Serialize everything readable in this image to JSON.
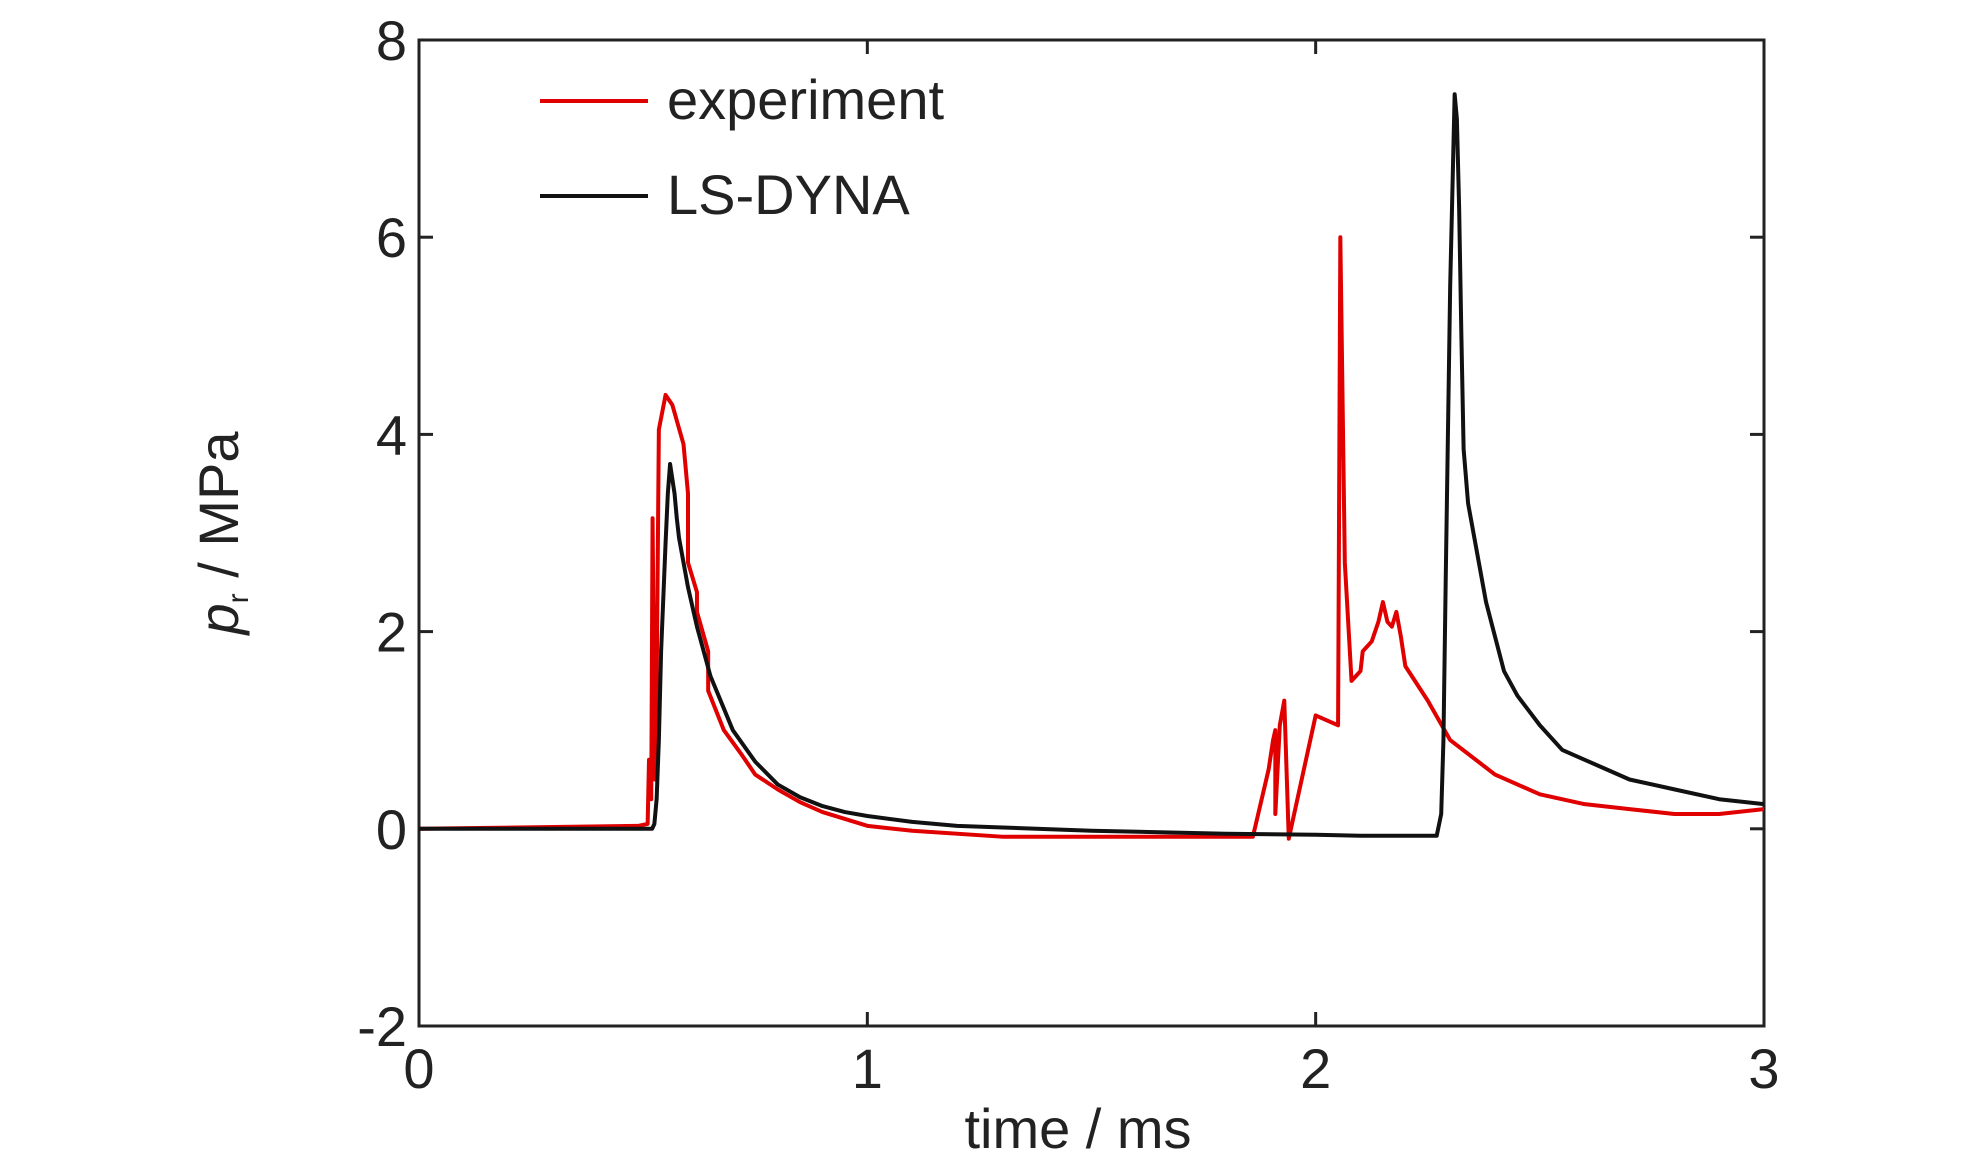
{
  "chart_data": {
    "type": "line",
    "title": "",
    "xlabel": "time / ms",
    "ylabel_main": "p",
    "ylabel_subscript": "r",
    "ylabel_unit": " / MPa",
    "xlim": [
      0,
      3
    ],
    "ylim": [
      -2,
      8
    ],
    "xticks": [
      0,
      1,
      2,
      3
    ],
    "xtick_labels": [
      "0",
      "1",
      "2",
      "3"
    ],
    "yticks": [
      -2,
      0,
      2,
      4,
      6,
      8
    ],
    "ytick_labels": [
      "-2",
      "0",
      "2",
      "4",
      "6",
      "8"
    ],
    "grid": false,
    "legend_position": "top-left",
    "series": [
      {
        "name": "experiment",
        "color": "#e00000",
        "x": [
          0,
          0.49,
          0.51,
          0.513,
          0.518,
          0.521,
          0.526,
          0.53,
          0.535,
          0.55,
          0.565,
          0.59,
          0.6,
          0.6,
          0.62,
          0.62,
          0.645,
          0.645,
          0.68,
          0.72,
          0.75,
          0.8,
          0.85,
          0.9,
          0.95,
          1.0,
          1.1,
          1.3,
          1.5,
          1.7,
          1.85,
          1.86,
          1.895,
          1.905,
          1.91,
          1.91,
          1.92,
          1.93,
          1.94,
          2.0,
          2.05,
          2.055,
          2.065,
          2.08,
          2.1,
          2.105,
          2.125,
          2.14,
          2.15,
          2.16,
          2.17,
          2.18,
          2.19,
          2.2,
          2.25,
          2.3,
          2.4,
          2.5,
          2.6,
          2.7,
          2.8,
          2.9,
          3.0
        ],
        "values": [
          0.0,
          0.03,
          0.05,
          0.7,
          0.3,
          3.15,
          0.5,
          1.4,
          4.05,
          4.4,
          4.3,
          3.9,
          3.4,
          2.7,
          2.4,
          2.2,
          1.8,
          1.4,
          1.0,
          0.75,
          0.55,
          0.4,
          0.27,
          0.17,
          0.1,
          0.03,
          -0.02,
          -0.08,
          -0.08,
          -0.08,
          -0.08,
          -0.08,
          0.6,
          0.9,
          1.0,
          0.15,
          1.05,
          1.3,
          -0.1,
          1.15,
          1.05,
          6.0,
          2.7,
          1.5,
          1.6,
          1.8,
          1.9,
          2.1,
          2.3,
          2.1,
          2.05,
          2.2,
          1.95,
          1.65,
          1.3,
          0.9,
          0.55,
          0.35,
          0.25,
          0.2,
          0.15,
          0.15,
          0.2
        ]
      },
      {
        "name": "LS-DYNA",
        "color": "#111111",
        "x": [
          0,
          0.5,
          0.52,
          0.525,
          0.53,
          0.535,
          0.54,
          0.55,
          0.555,
          0.56,
          0.565,
          0.57,
          0.575,
          0.58,
          0.6,
          0.62,
          0.65,
          0.7,
          0.75,
          0.8,
          0.85,
          0.9,
          0.95,
          1.0,
          1.1,
          1.2,
          1.5,
          1.8,
          2.0,
          2.1,
          2.2,
          2.27,
          2.28,
          2.285,
          2.29,
          2.3,
          2.31,
          2.315,
          2.32,
          2.325,
          2.33,
          2.34,
          2.36,
          2.38,
          2.4,
          2.42,
          2.45,
          2.5,
          2.55,
          2.6,
          2.65,
          2.7,
          2.8,
          2.9,
          3.0
        ],
        "values": [
          0.0,
          0.0,
          0.0,
          0.05,
          0.3,
          0.9,
          1.8,
          2.9,
          3.4,
          3.7,
          3.55,
          3.4,
          3.15,
          2.95,
          2.45,
          2.05,
          1.55,
          1.0,
          0.68,
          0.45,
          0.32,
          0.23,
          0.17,
          0.13,
          0.07,
          0.03,
          -0.02,
          -0.05,
          -0.06,
          -0.07,
          -0.07,
          -0.07,
          0.15,
          0.9,
          2.5,
          5.5,
          7.45,
          7.2,
          6.3,
          5.0,
          3.85,
          3.3,
          2.8,
          2.3,
          1.95,
          1.6,
          1.35,
          1.05,
          0.8,
          0.7,
          0.6,
          0.5,
          0.4,
          0.3,
          0.25
        ]
      }
    ]
  }
}
